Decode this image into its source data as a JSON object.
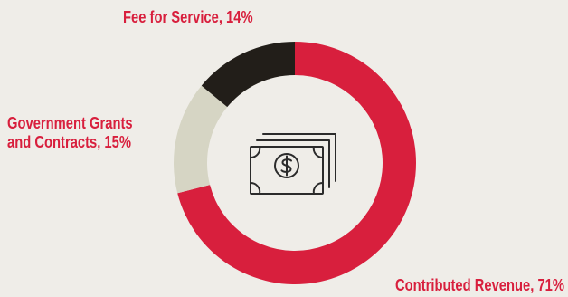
{
  "colors": {
    "background": "#efede8",
    "contributed": "#d81f3d",
    "government": "#d6d5c4",
    "fee": "#221e19",
    "label": "#d81f3d",
    "icon": "#2b2b2b"
  },
  "center_icon": "dollar-bills-icon",
  "labels": {
    "fee": "Fee for Service, 14%",
    "gov_line1": "Government Grants",
    "gov_line2": "and Contracts, 15%",
    "contrib": "Contributed Revenue, 71%"
  },
  "chart_data": {
    "type": "pie",
    "donut": true,
    "categories": [
      "Contributed Revenue",
      "Government Grants and Contracts",
      "Fee for Service"
    ],
    "values": [
      71,
      15,
      14
    ],
    "unit": "%",
    "start": "top",
    "direction": "clockwise",
    "title": ""
  }
}
